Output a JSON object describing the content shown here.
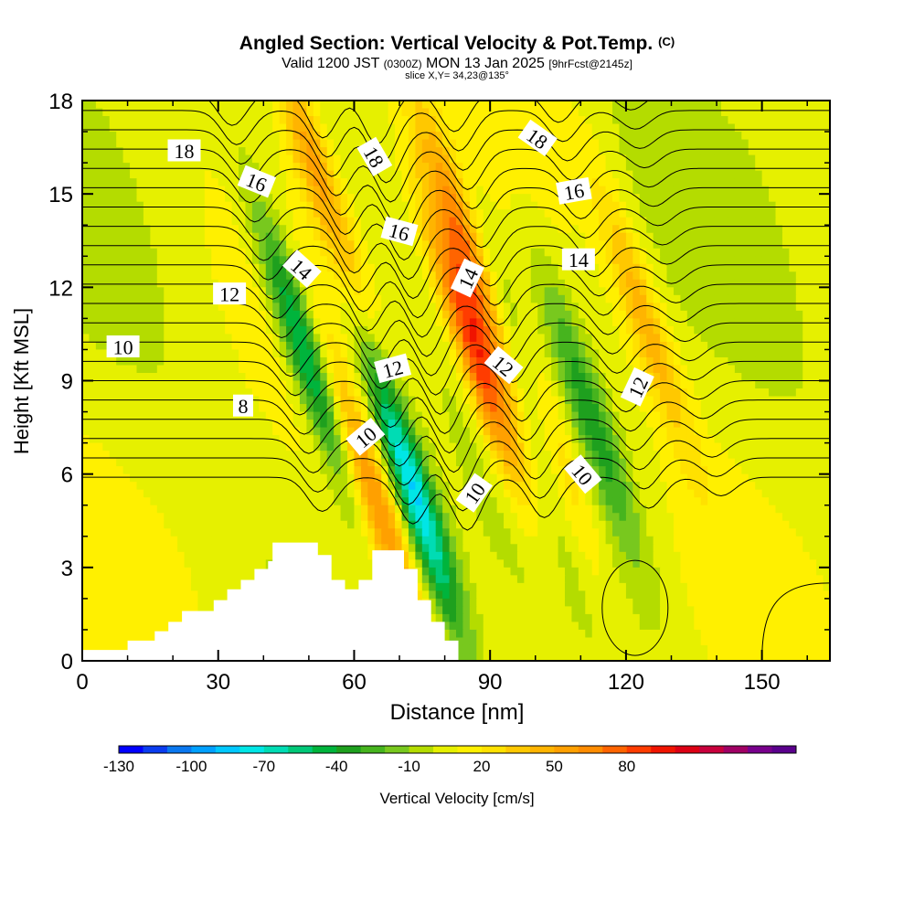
{
  "header": {
    "title": "Angled Section: Vertical Velocity & Pot.Temp.",
    "title_tag": "(C)",
    "valid_prefix": "Valid 1200 JST",
    "valid_utc": "(0300Z)",
    "valid_date": "MON 13 Jan 2025",
    "forecast": "[9hrFcst@2145z]",
    "slice": "slice X,Y= 34,23@135°"
  },
  "chart_data": {
    "type": "heatmap",
    "xlabel": "Distance [nm]",
    "ylabel": "Height [Kft MSL]",
    "xlim": [
      0,
      165
    ],
    "ylim": [
      0,
      18
    ],
    "xticks": [
      0,
      30,
      60,
      90,
      120,
      150
    ],
    "yticks": [
      0,
      3,
      6,
      9,
      12,
      15,
      18
    ],
    "terrain": [
      [
        0,
        0.35
      ],
      [
        10,
        0.35
      ],
      [
        10,
        0.65
      ],
      [
        16,
        0.65
      ],
      [
        16,
        0.95
      ],
      [
        19,
        0.95
      ],
      [
        19,
        1.25
      ],
      [
        22,
        1.25
      ],
      [
        22,
        1.6
      ],
      [
        29,
        1.6
      ],
      [
        29,
        1.95
      ],
      [
        32,
        1.95
      ],
      [
        32,
        2.3
      ],
      [
        35,
        2.3
      ],
      [
        35,
        2.6
      ],
      [
        38,
        2.6
      ],
      [
        38,
        2.95
      ],
      [
        41,
        2.95
      ],
      [
        41,
        3.2
      ],
      [
        42,
        3.2
      ],
      [
        42,
        3.8
      ],
      [
        52,
        3.8
      ],
      [
        52,
        3.4
      ],
      [
        55,
        3.4
      ],
      [
        55,
        2.6
      ],
      [
        58,
        2.6
      ],
      [
        58,
        2.3
      ],
      [
        61,
        2.3
      ],
      [
        61,
        2.6
      ],
      [
        64,
        2.6
      ],
      [
        64,
        3.55
      ],
      [
        71,
        3.55
      ],
      [
        71,
        2.95
      ],
      [
        74,
        2.95
      ],
      [
        74,
        1.95
      ],
      [
        77,
        1.95
      ],
      [
        77,
        1.25
      ],
      [
        80,
        1.25
      ],
      [
        80,
        0.65
      ],
      [
        83,
        0.65
      ],
      [
        83,
        0
      ]
    ],
    "velocity_field": {
      "unit": "cm/s",
      "features": [
        {
          "kind": "updraft",
          "x": 87,
          "y": 9.8,
          "max": 85
        },
        {
          "kind": "updraft",
          "x": 86,
          "y": 12.8,
          "max": 70
        },
        {
          "kind": "updraft",
          "x": 65,
          "y": 5,
          "max": 55
        },
        {
          "kind": "updraft",
          "x": 51,
          "y": 16,
          "max": 50
        },
        {
          "kind": "updraft",
          "x": 103,
          "y": 7.5,
          "max": 50
        },
        {
          "kind": "updraft",
          "x": 124,
          "y": 11,
          "max": 40
        },
        {
          "kind": "downdraft",
          "x": 73,
          "y": 5.5,
          "max": -90
        },
        {
          "kind": "downdraft",
          "x": 49,
          "y": 10,
          "max": -70
        },
        {
          "kind": "downdraft",
          "x": 96,
          "y": 10,
          "max": -50
        },
        {
          "kind": "downdraft",
          "x": 112,
          "y": 8,
          "max": -40
        }
      ]
    },
    "isentropes": [
      {
        "label": "8",
        "base": 7.2
      },
      {
        "label": "10",
        "base": 9.2
      },
      {
        "label": "12",
        "base": 11.3
      },
      {
        "label": "14",
        "base": 13.2
      },
      {
        "label": "16",
        "base": 15.4
      },
      {
        "label": "18",
        "base": 17.1
      }
    ],
    "contour_labels": [
      {
        "text": "18",
        "x": 22.5,
        "y": 16.4,
        "angle": 0
      },
      {
        "text": "16",
        "x": 38.5,
        "y": 15.4,
        "angle": 22
      },
      {
        "text": "14",
        "x": 48.5,
        "y": 12.6,
        "angle": 42
      },
      {
        "text": "12",
        "x": 32.5,
        "y": 11.8,
        "angle": 0
      },
      {
        "text": "10",
        "x": 9,
        "y": 10.1,
        "angle": 0
      },
      {
        "text": "8",
        "x": 35.5,
        "y": 8.2,
        "angle": 0
      },
      {
        "text": "18",
        "x": 64.5,
        "y": 16.2,
        "angle": 60
      },
      {
        "text": "16",
        "x": 70,
        "y": 13.8,
        "angle": 15
      },
      {
        "text": "12",
        "x": 68.5,
        "y": 9.4,
        "angle": -15
      },
      {
        "text": "10",
        "x": 62.5,
        "y": 7.2,
        "angle": -40
      },
      {
        "text": "14",
        "x": 85,
        "y": 12.3,
        "angle": -65
      },
      {
        "text": "12",
        "x": 93,
        "y": 9.5,
        "angle": 40
      },
      {
        "text": "10",
        "x": 86.5,
        "y": 5.4,
        "angle": -55
      },
      {
        "text": "18",
        "x": 100.5,
        "y": 16.8,
        "angle": 35
      },
      {
        "text": "16",
        "x": 108.5,
        "y": 15.1,
        "angle": -10
      },
      {
        "text": "14",
        "x": 109.5,
        "y": 12.9,
        "angle": 0
      },
      {
        "text": "12",
        "x": 122.5,
        "y": 8.8,
        "angle": -65
      },
      {
        "text": "10",
        "x": 110.5,
        "y": 6,
        "angle": 50
      }
    ],
    "colorbar": {
      "label": "Vertical Velocity [cm/s]",
      "min": -130,
      "step": 10,
      "ticks": [
        "-130",
        "-100",
        "-70",
        "-40",
        "-10",
        "20",
        "50",
        "80"
      ],
      "colors": [
        "#0000ff",
        "#0a3cf0",
        "#0a78f0",
        "#00a0ff",
        "#00c8ff",
        "#00e6e6",
        "#00dcb4",
        "#00c878",
        "#00b43c",
        "#1ea01e",
        "#46b41e",
        "#78c81e",
        "#b4dc00",
        "#e6f000",
        "#fff000",
        "#ffe100",
        "#ffc800",
        "#ffb400",
        "#ffa000",
        "#ff8c00",
        "#ff6400",
        "#ff3c00",
        "#f01400",
        "#dc0014",
        "#c8003c",
        "#a00064",
        "#78008c",
        "#5a008c"
      ]
    }
  }
}
